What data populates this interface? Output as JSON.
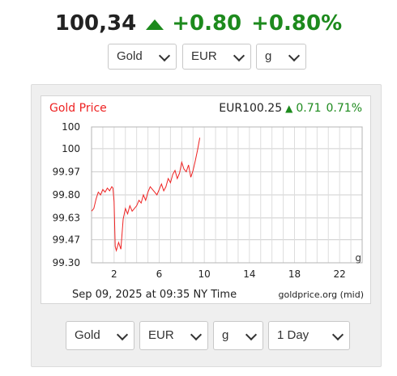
{
  "header": {
    "price": "100,34",
    "change": "+0.80",
    "change_pct": "+0.80%",
    "direction": "up",
    "up_color": "#1d8a1d"
  },
  "top_selectors": {
    "metal": "Gold",
    "currency": "EUR",
    "unit": "g"
  },
  "chart": {
    "title": "Gold Price",
    "quote": "EUR100.25",
    "quote_change": "0.71",
    "quote_change_pct": "0.71%",
    "unit_label": "g",
    "timestamp": "Sep 09, 2025 at 09:35 NY Time",
    "source": "goldprice.org (mid)",
    "line_color": "#ee2222",
    "title_color": "#ee2222"
  },
  "chart_data": {
    "type": "line",
    "title": "Gold Price",
    "xlabel": "",
    "ylabel": "",
    "y_tick_labels": [
      "100",
      "100",
      "99.97",
      "99.80",
      "99.63",
      "99.47",
      "99.30"
    ],
    "y_tick_values": [
      100.3,
      100.14,
      99.97,
      99.8,
      99.63,
      99.47,
      99.3
    ],
    "x_ticks": [
      2,
      6,
      10,
      14,
      18,
      22
    ],
    "xlim": [
      0,
      24
    ],
    "ylim": [
      99.3,
      100.3
    ],
    "grid": true,
    "series": [
      {
        "values_x": [
          0.0,
          0.2,
          0.4,
          0.6,
          0.8,
          1.0,
          1.2,
          1.4,
          1.6,
          1.8,
          1.9,
          2.0,
          2.1,
          2.2,
          2.4,
          2.6,
          2.8,
          3.0,
          3.2,
          3.4,
          3.6,
          3.8,
          4.0,
          4.2,
          4.4,
          4.6,
          4.8,
          5.0,
          5.2,
          5.4,
          5.6,
          5.8,
          6.0,
          6.2,
          6.4,
          6.6,
          6.8,
          7.0,
          7.2,
          7.4,
          7.6,
          7.8,
          8.0,
          8.2,
          8.4,
          8.6,
          8.8,
          9.0,
          9.2,
          9.4,
          9.6
        ],
        "values_y": [
          99.68,
          99.7,
          99.77,
          99.82,
          99.8,
          99.84,
          99.82,
          99.85,
          99.83,
          99.86,
          99.85,
          99.75,
          99.42,
          99.39,
          99.45,
          99.4,
          99.62,
          99.7,
          99.66,
          99.72,
          99.68,
          99.7,
          99.72,
          99.76,
          99.74,
          99.8,
          99.76,
          99.82,
          99.86,
          99.84,
          99.82,
          99.8,
          99.84,
          99.88,
          99.83,
          99.86,
          99.92,
          99.89,
          99.95,
          99.98,
          99.92,
          99.96,
          100.04,
          99.99,
          99.97,
          100.02,
          99.93,
          99.98,
          100.05,
          100.13,
          100.22
        ]
      }
    ]
  },
  "bottom_selectors": {
    "metal": "Gold",
    "currency": "EUR",
    "unit": "g",
    "period": "1 Day"
  }
}
